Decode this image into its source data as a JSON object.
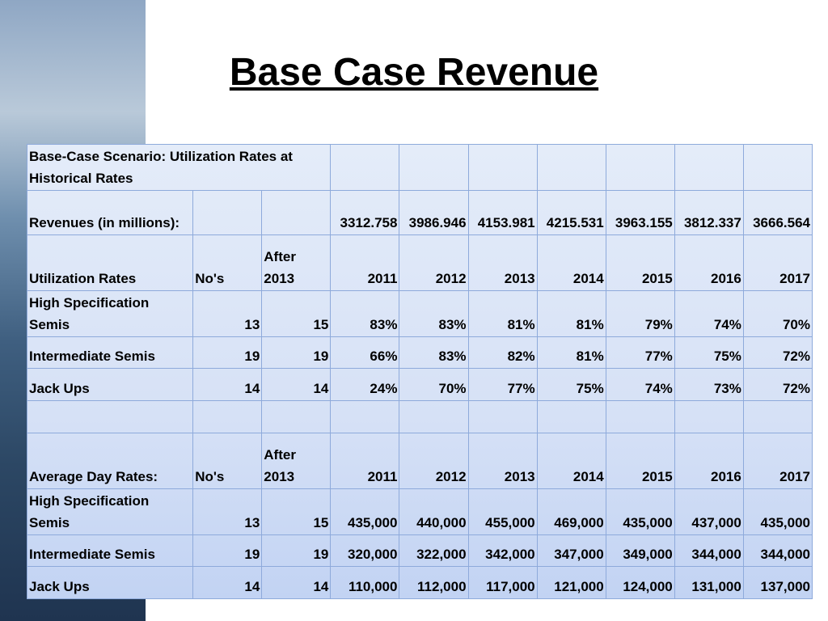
{
  "title": "Base Case Revenue",
  "table": {
    "caption_row": "Base-Case Scenario: Utilization Rates at Historical Rates",
    "revenue_row": {
      "label": "Revenues (in millions):",
      "values": [
        "3312.758",
        "3986.946",
        "4153.981",
        "4215.531",
        "3963.155",
        "3812.337",
        "3666.564"
      ]
    },
    "sections": [
      {
        "header": [
          "Utilization Rates",
          "No's",
          "After 2013",
          "2011",
          "2012",
          "2013",
          "2014",
          "2015",
          "2016",
          "2017"
        ],
        "rows": [
          [
            "High Specification Semis",
            "13",
            "15",
            "83%",
            "83%",
            "81%",
            "81%",
            "79%",
            "74%",
            "70%"
          ],
          [
            "Intermediate Semis",
            "19",
            "19",
            "66%",
            "83%",
            "82%",
            "81%",
            "77%",
            "75%",
            "72%"
          ],
          [
            "Jack Ups",
            "14",
            "14",
            "24%",
            "70%",
            "77%",
            "75%",
            "74%",
            "73%",
            "72%"
          ]
        ]
      },
      {
        "header": [
          "Average Day Rates:",
          "No's",
          "After 2013",
          "2011",
          "2012",
          "2013",
          "2014",
          "2015",
          "2016",
          "2017"
        ],
        "rows": [
          [
            "High Specification Semis",
            "13",
            "15",
            "435,000",
            "440,000",
            "455,000",
            "469,000",
            "435,000",
            "437,000",
            "435,000"
          ],
          [
            "Intermediate Semis",
            "19",
            "19",
            "320,000",
            "322,000",
            "342,000",
            "347,000",
            "349,000",
            "344,000",
            "344,000"
          ],
          [
            "Jack Ups",
            "14",
            "14",
            "110,000",
            "112,000",
            "117,000",
            "121,000",
            "124,000",
            "131,000",
            "137,000"
          ]
        ]
      }
    ]
  }
}
